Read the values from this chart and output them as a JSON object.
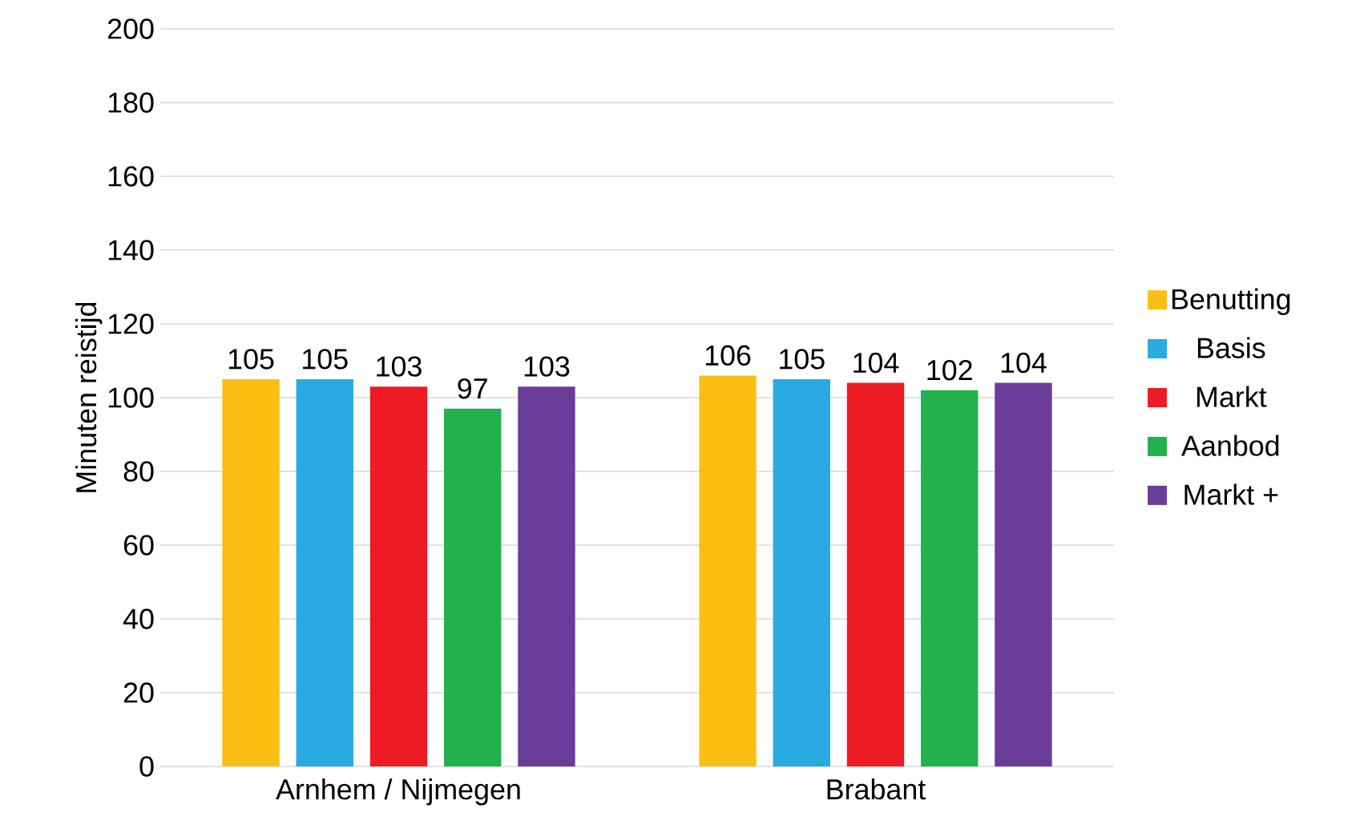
{
  "chart_data": {
    "type": "bar",
    "ylabel": "Minuten reistijd",
    "categories": [
      "Arnhem / Nijmegen",
      "Brabant"
    ],
    "series": [
      {
        "name": "Benutting",
        "color": "#fbbf14",
        "values": [
          105,
          106
        ]
      },
      {
        "name": "Basis",
        "color": "#29abe2",
        "values": [
          105,
          105
        ]
      },
      {
        "name": "Markt",
        "color": "#ed1c24",
        "values": [
          103,
          104
        ]
      },
      {
        "name": "Aanbod",
        "color": "#22b14c",
        "values": [
          97,
          102
        ]
      },
      {
        "name": "Markt +",
        "color": "#6a3d9a",
        "values": [
          103,
          104
        ]
      }
    ],
    "ylim": [
      0,
      200
    ],
    "yticks": [
      0,
      20,
      40,
      60,
      80,
      100,
      120,
      140,
      160,
      180,
      200
    ],
    "grid": "y",
    "legend": "right",
    "data_labels": true
  }
}
